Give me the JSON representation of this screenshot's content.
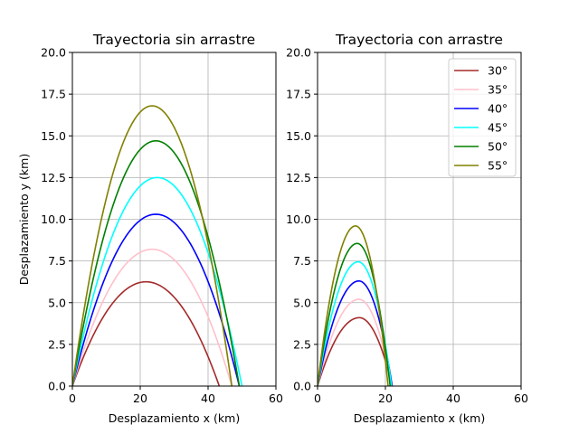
{
  "chart_data": [
    {
      "type": "line",
      "title": "Trayectoria sin arrastre",
      "xlabel": "Desplazamiento x (km)",
      "ylabel": "Desplazamiento y (km)",
      "xlim": [
        0,
        60
      ],
      "ylim": [
        0,
        20
      ],
      "xticks": [
        "0",
        "20",
        "40",
        "60"
      ],
      "yticks": [
        "0.0",
        "2.5",
        "5.0",
        "7.5",
        "10.0",
        "12.5",
        "15.0",
        "17.5",
        "20.0"
      ],
      "grid": true,
      "legend": null,
      "series": [
        {
          "name": "30°",
          "color": "#a52a2a",
          "range_km": 43.3,
          "apex_x_km": 21.7,
          "apex_y_km": 6.25
        },
        {
          "name": "35°",
          "color": "#ffc0cb",
          "range_km": 47.0,
          "apex_x_km": 23.5,
          "apex_y_km": 8.2
        },
        {
          "name": "40°",
          "color": "#0000ff",
          "range_km": 49.2,
          "apex_x_km": 24.6,
          "apex_y_km": 10.3
        },
        {
          "name": "45°",
          "color": "#00ffff",
          "range_km": 50.0,
          "apex_x_km": 25.0,
          "apex_y_km": 12.5
        },
        {
          "name": "50°",
          "color": "#008000",
          "range_km": 49.2,
          "apex_x_km": 24.6,
          "apex_y_km": 14.7
        },
        {
          "name": "55°",
          "color": "#808000",
          "range_km": 47.0,
          "apex_x_km": 23.5,
          "apex_y_km": 16.8
        }
      ]
    },
    {
      "type": "line",
      "title": "Trayectoria con arrastre",
      "xlabel": "Desplazamiento x (km)",
      "ylabel": "",
      "xlim": [
        0,
        60
      ],
      "ylim": [
        0,
        20
      ],
      "xticks": [
        "0",
        "20",
        "40",
        "60"
      ],
      "yticks": [
        "0.0",
        "2.5",
        "5.0",
        "7.5",
        "10.0",
        "12.5",
        "15.0",
        "17.5",
        "20.0"
      ],
      "grid": true,
      "legend": "top-right",
      "series": [
        {
          "name": "30°",
          "color": "#a52a2a",
          "range_km": 22.0,
          "apex_x_km": 12.3,
          "apex_y_km": 4.1
        },
        {
          "name": "35°",
          "color": "#ffc0cb",
          "range_km": 21.8,
          "apex_x_km": 12.2,
          "apex_y_km": 5.2
        },
        {
          "name": "40°",
          "color": "#0000ff",
          "range_km": 22.0,
          "apex_x_km": 12.2,
          "apex_y_km": 6.3
        },
        {
          "name": "45°",
          "color": "#00ffff",
          "range_km": 21.8,
          "apex_x_km": 12.0,
          "apex_y_km": 7.45
        },
        {
          "name": "50°",
          "color": "#008000",
          "range_km": 21.4,
          "apex_x_km": 11.7,
          "apex_y_km": 8.55
        },
        {
          "name": "55°",
          "color": "#808000",
          "range_km": 20.8,
          "apex_x_km": 11.2,
          "apex_y_km": 9.6
        }
      ]
    }
  ]
}
